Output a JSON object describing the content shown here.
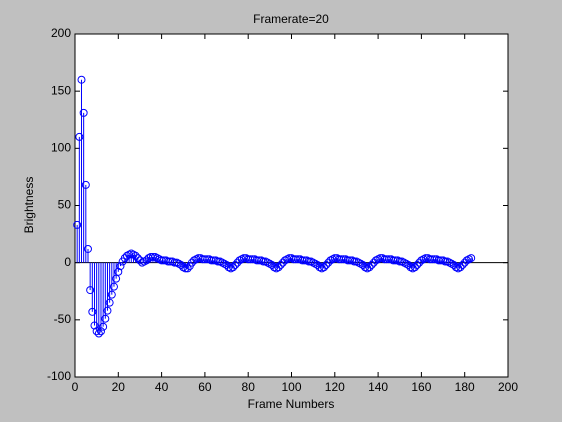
{
  "chart_data": {
    "type": "stem",
    "title": "Framerate=20",
    "xlabel": "Frame Numbers",
    "ylabel": "Brightness",
    "x": [
      1,
      2,
      3,
      4,
      5,
      6,
      7,
      8,
      9,
      10,
      11,
      12,
      13,
      14,
      15,
      16,
      17,
      18,
      19,
      20,
      21,
      22,
      23,
      24,
      25,
      26,
      27,
      28,
      29,
      30,
      31,
      32,
      33,
      34,
      35,
      36,
      37,
      38,
      39,
      40,
      41,
      42,
      43,
      44,
      45,
      46,
      47,
      48,
      49,
      50,
      51,
      52,
      53,
      54,
      55,
      56,
      57,
      58,
      59,
      60,
      61,
      62,
      63,
      64,
      65,
      66,
      67,
      68,
      69,
      70,
      71,
      72,
      73,
      74,
      75,
      76,
      77,
      78,
      79,
      80,
      81,
      82,
      83,
      84,
      85,
      86,
      87,
      88,
      89,
      90,
      91,
      92,
      93,
      94,
      95,
      96,
      97,
      98,
      99,
      100,
      101,
      102,
      103,
      104,
      105,
      106,
      107,
      108,
      109,
      110,
      111,
      112,
      113,
      114,
      115,
      116,
      117,
      118,
      119,
      120,
      121,
      122,
      123,
      124,
      125,
      126,
      127,
      128,
      129,
      130,
      131,
      132,
      133,
      134,
      135,
      136,
      137,
      138,
      139,
      140,
      141,
      142,
      143,
      144,
      145,
      146,
      147,
      148,
      149,
      150,
      151,
      152,
      153,
      154,
      155,
      156,
      157,
      158,
      159,
      160,
      161,
      162,
      163,
      164,
      165,
      166,
      167,
      168,
      169,
      170,
      171,
      172,
      173,
      174,
      175,
      176,
      177,
      178,
      179,
      180,
      181,
      182,
      183
    ],
    "values": [
      33,
      110,
      160,
      131,
      68,
      12,
      -24,
      -43,
      -55,
      -60,
      -62,
      -60,
      -56,
      -49,
      -42,
      -35,
      -28,
      -21,
      -14,
      -8,
      -3,
      1,
      4,
      6,
      7,
      8,
      7,
      6,
      4,
      2,
      0,
      1,
      2,
      4,
      5,
      5,
      5,
      4,
      3,
      2,
      2,
      2,
      1,
      1,
      1,
      0,
      0,
      -1,
      -2,
      -4,
      -5,
      -5,
      -3,
      0,
      2,
      3,
      4,
      4,
      3,
      3,
      3,
      3,
      2,
      2,
      2,
      1,
      1,
      0,
      -1,
      -2,
      -4,
      -5,
      -4,
      -2,
      0,
      2,
      3,
      4,
      4,
      3,
      3,
      3,
      3,
      2,
      2,
      2,
      1,
      1,
      0,
      -1,
      -2,
      -4,
      -5,
      -4,
      -2,
      0,
      2,
      3,
      4,
      4,
      3,
      3,
      3,
      3,
      2,
      2,
      2,
      1,
      1,
      0,
      -1,
      -2,
      -4,
      -5,
      -4,
      -2,
      0,
      2,
      3,
      4,
      4,
      3,
      3,
      3,
      3,
      2,
      2,
      2,
      1,
      1,
      0,
      -1,
      -2,
      -4,
      -5,
      -4,
      -2,
      0,
      2,
      3,
      4,
      4,
      3,
      3,
      3,
      3,
      2,
      2,
      2,
      1,
      1,
      0,
      -1,
      -2,
      -4,
      -5,
      -4,
      -2,
      0,
      2,
      3,
      4,
      4,
      3,
      3,
      3,
      3,
      2,
      2,
      2,
      1,
      1,
      0,
      -1,
      -2,
      -4,
      -5,
      -4,
      -2,
      0,
      2,
      3,
      4
    ],
    "color": "#0000ff",
    "xlim": [
      0,
      200
    ],
    "xticks": [
      0,
      20,
      40,
      60,
      80,
      100,
      120,
      140,
      160,
      180,
      200
    ],
    "ylim": [
      -100,
      200
    ],
    "yticks": [
      -100,
      -50,
      0,
      50,
      100,
      150,
      200
    ]
  }
}
